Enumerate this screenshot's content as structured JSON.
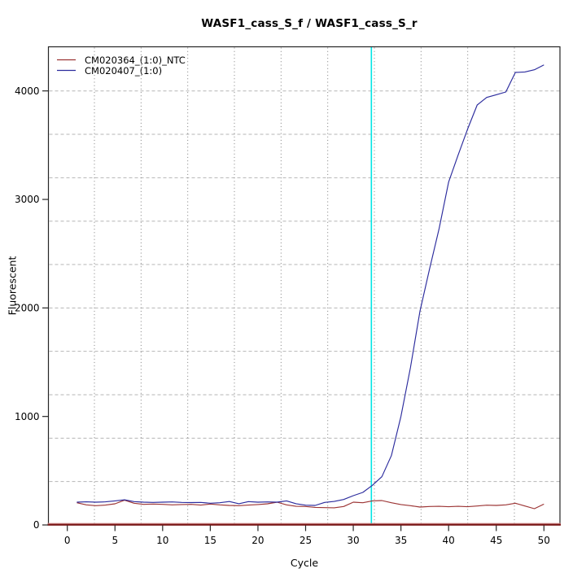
{
  "title": "WASF1_cass_S_f / WASF1_cass_S_r",
  "axes": {
    "xlabel": "Cycle",
    "ylabel": "Fluorescent"
  },
  "legend": {
    "position": "top-left",
    "items": [
      {
        "label": "CM020364_(1:0)_NTC",
        "color": "#9c3434"
      },
      {
        "label": "CM020407_(1:0)",
        "color": "#2b2b9d"
      }
    ]
  },
  "colors": {
    "ntc_line": "#9c3434",
    "sample_line": "#2b2b9d",
    "threshold_line": "#00e5e5",
    "baseline_dark": "#7a1515",
    "baseline_light": "#d49090",
    "grid_horizontal": "#b5b5b5",
    "grid_vertical": "#7d7d7d",
    "box": "#262626"
  },
  "chart_data": {
    "type": "line",
    "title": "WASF1_cass_S_f / WASF1_cass_S_r",
    "xlabel": "Cycle",
    "ylabel": "Fluorescent",
    "x": [
      1,
      2,
      3,
      4,
      5,
      6,
      7,
      8,
      9,
      10,
      11,
      12,
      13,
      14,
      15,
      16,
      17,
      18,
      19,
      20,
      21,
      22,
      23,
      24,
      25,
      26,
      27,
      28,
      29,
      30,
      31,
      32,
      33,
      34,
      35,
      36,
      37,
      38,
      39,
      40,
      41,
      42,
      43,
      44,
      45,
      46,
      47,
      48,
      49,
      50
    ],
    "series": [
      {
        "name": "CM020364_(1:0)_NTC",
        "color": "#9c3434",
        "values": [
          205,
          185,
          178,
          183,
          195,
          228,
          200,
          190,
          193,
          190,
          185,
          188,
          190,
          183,
          193,
          185,
          180,
          178,
          183,
          188,
          195,
          210,
          185,
          172,
          170,
          162,
          160,
          158,
          170,
          210,
          205,
          222,
          225,
          205,
          188,
          178,
          165,
          170,
          172,
          168,
          172,
          168,
          175,
          182,
          180,
          185,
          200,
          175,
          150,
          192
        ]
      },
      {
        "name": "CM020407_(1:0)",
        "color": "#2b2b9d",
        "values": [
          210,
          213,
          210,
          213,
          222,
          232,
          215,
          210,
          208,
          210,
          212,
          208,
          206,
          208,
          200,
          205,
          216,
          196,
          215,
          210,
          212,
          210,
          222,
          196,
          182,
          180,
          208,
          217,
          235,
          270,
          300,
          365,
          445,
          640,
          1000,
          1450,
          1970,
          2360,
          2730,
          3160,
          3410,
          3650,
          3870,
          3940,
          3965,
          3990,
          4170,
          4175,
          4195,
          4240
        ]
      }
    ],
    "x_ticks": [
      0,
      5,
      10,
      15,
      20,
      25,
      30,
      35,
      40,
      45,
      50
    ],
    "y_ticks": [
      0,
      1000,
      2000,
      3000,
      4000
    ],
    "xlim": [
      -2,
      51.7
    ],
    "ylim": [
      0,
      4403
    ],
    "threshold_cycle_line": {
      "x": 31.9,
      "color": "#00e5e5"
    },
    "baseline_marker": {
      "y": 0,
      "color": "#7a1515"
    },
    "grid": {
      "style_horizontal": "dashed",
      "style_vertical": "dotted",
      "horizontal_values": [
        400,
        800,
        1200,
        1600,
        2000,
        2400,
        2800,
        3200,
        3600,
        4000
      ],
      "vertical_count": 10
    },
    "legend_position": "top-left"
  }
}
